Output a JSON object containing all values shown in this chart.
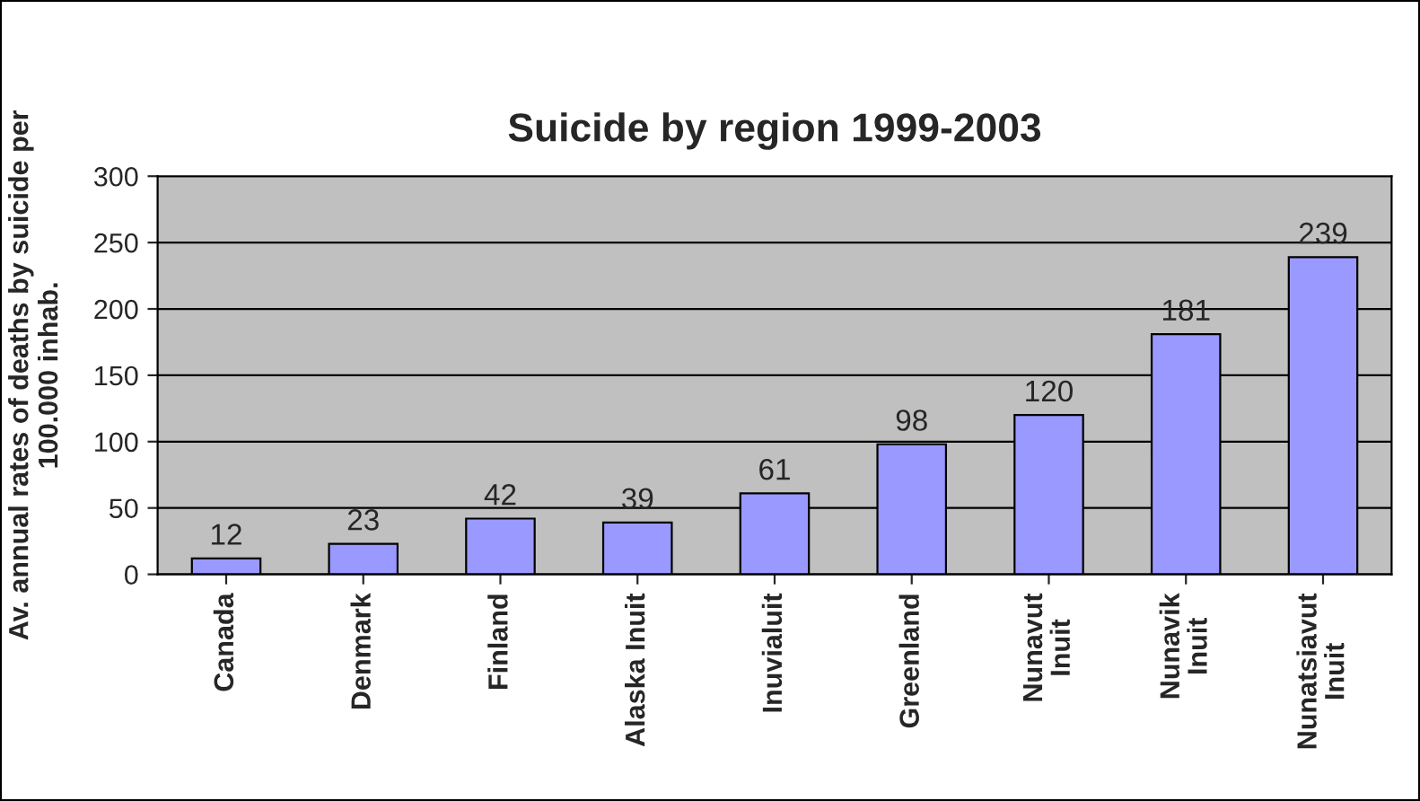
{
  "chart_data": {
    "type": "bar",
    "title": "Suicide by region 1999-2003",
    "ylabel": "Av. annual rates of deaths by suicide per\n100.000 inhab.",
    "categories": [
      "Canada",
      "Denmark",
      "Finland",
      "Alaska Inuit",
      "Inuvialuit",
      "Greenland",
      "Nunavut\nInuit",
      "Nunavik\nInuit",
      "Nunatsiavut\nInuit"
    ],
    "values": [
      12,
      23,
      42,
      39,
      61,
      98,
      120,
      181,
      239
    ],
    "color": "#9999ff",
    "ylim": [
      0,
      300
    ],
    "yticks": [
      0,
      50,
      100,
      150,
      200,
      250,
      300
    ],
    "grid": "y",
    "data_labels": true,
    "legend": false
  }
}
